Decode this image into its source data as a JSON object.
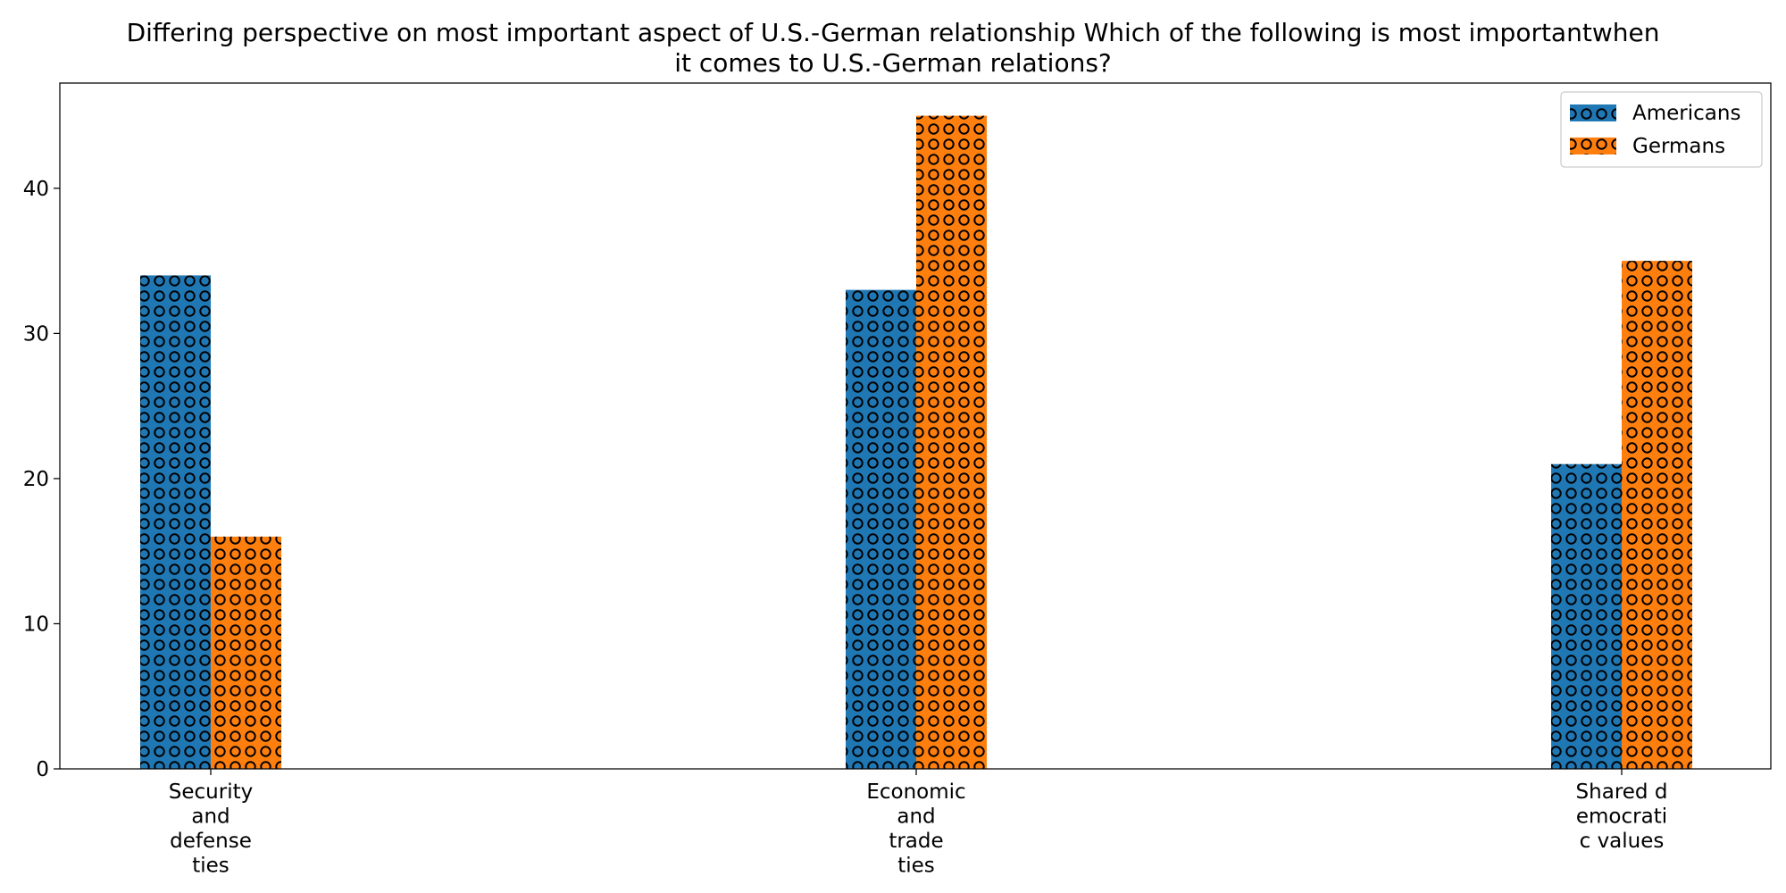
{
  "chart_data": {
    "type": "bar",
    "title_lines": [
      "Differing perspective on most important aspect of U.S.-German relationship Which of the following is most importantwhen",
      "it comes to U.S.-German relations?"
    ],
    "categories": [
      [
        "Security",
        "and",
        "defense",
        "ties"
      ],
      [
        "Economic",
        "and",
        "trade",
        "ties"
      ],
      [
        "Shared d",
        "emocrati",
        "c values"
      ]
    ],
    "series": [
      {
        "name": "Americans",
        "values": [
          34,
          33,
          21
        ],
        "color": "#1f77b4"
      },
      {
        "name": "Germans",
        "values": [
          16,
          45,
          35
        ],
        "color": "#ff7f0e"
      }
    ],
    "xlabel": "",
    "ylabel": "",
    "ylim": [
      0,
      47.25
    ],
    "yticks": [
      "0",
      "10",
      "20",
      "30",
      "40"
    ],
    "grid": false,
    "legend_position": "top-right",
    "bar_pattern": "circle-hatch"
  }
}
